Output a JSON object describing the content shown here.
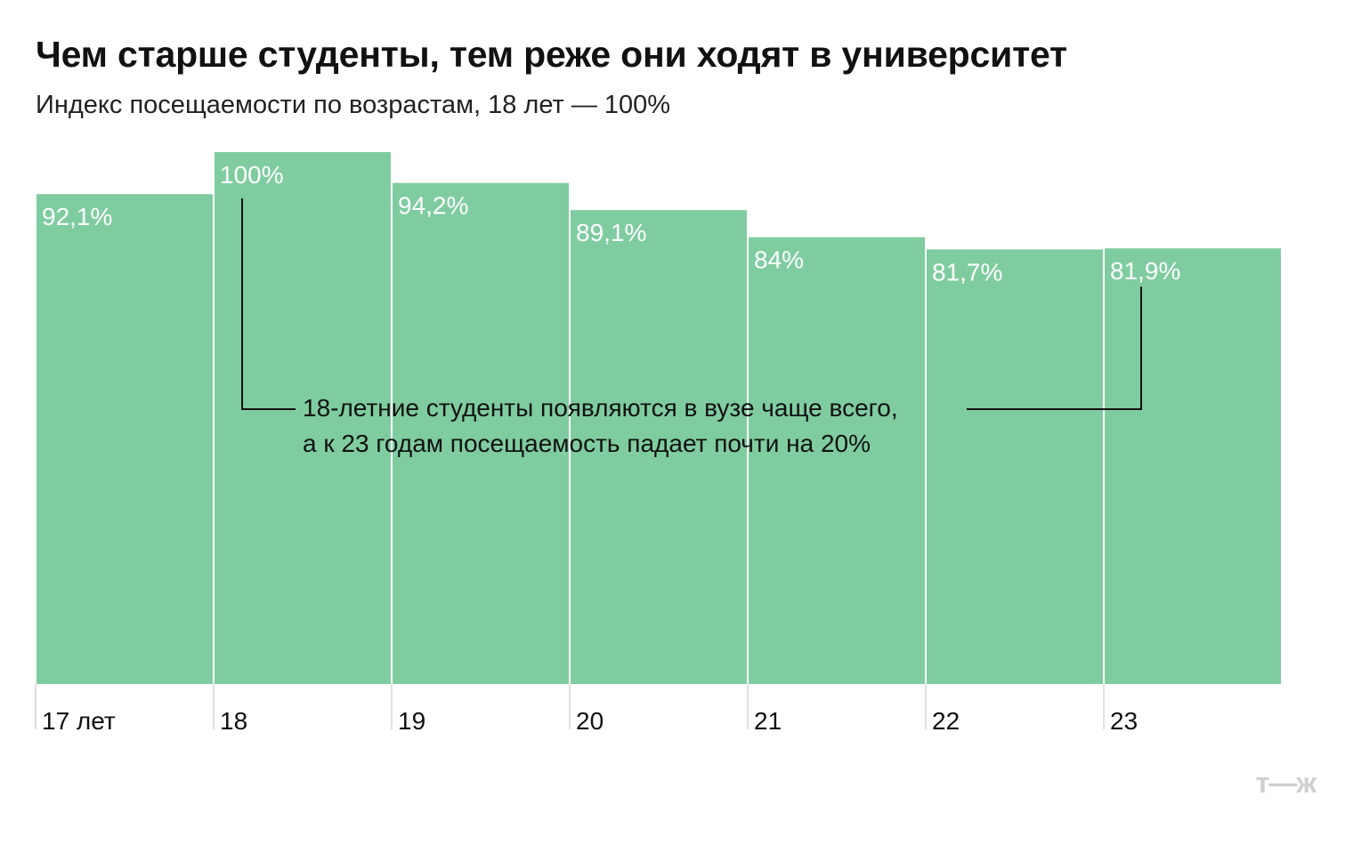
{
  "header": {
    "title": "Чем старше студенты, тем реже они ходят в университет",
    "subtitle": "Индекс посещаемости по возрастам, 18 лет — 100%"
  },
  "annotation": {
    "line1": "18-летние студенты появляются в вузе чаще всего,",
    "line2": "а к 23 годам посещаемость падает почти на 20%"
  },
  "logo": {
    "text": "т—ж"
  },
  "colors": {
    "bar": "#7fcca0",
    "bar_label": "#ffffff",
    "annotation_line": "#111111",
    "logo": "#cfcfcf"
  },
  "chart_data": {
    "type": "bar",
    "categories": [
      "17 лет",
      "18",
      "19",
      "20",
      "21",
      "22",
      "23"
    ],
    "values": [
      92.1,
      100,
      94.2,
      89.1,
      84,
      81.7,
      81.9
    ],
    "value_labels": [
      "92,1%",
      "100%",
      "94,2%",
      "89,1%",
      "84%",
      "81,7%",
      "81,9%"
    ],
    "title": "Чем старше студенты, тем реже они ходят в университет",
    "subtitle": "Индекс посещаемости по возрастам, 18 лет — 100%",
    "xlabel": "",
    "ylabel": "",
    "ylim": [
      0,
      100
    ],
    "grid": false,
    "legend": "none"
  }
}
